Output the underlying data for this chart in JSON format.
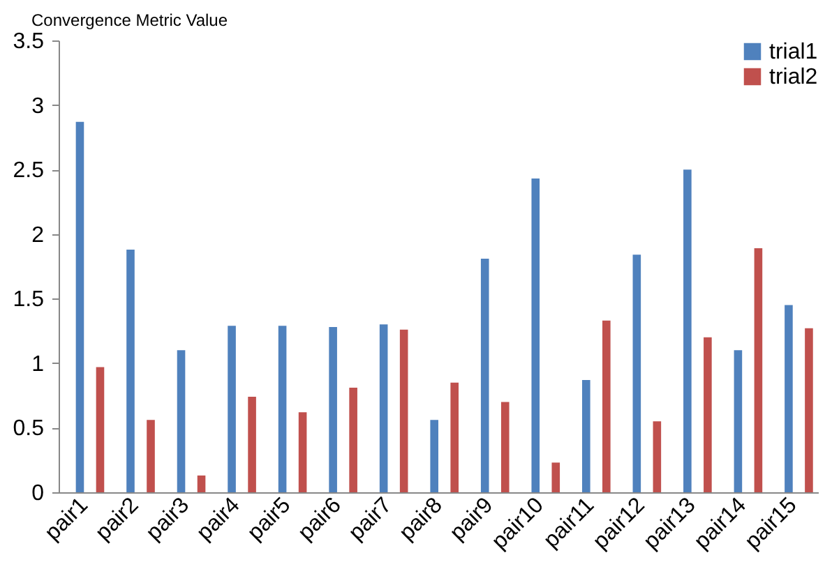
{
  "chart_data": {
    "type": "bar",
    "ylabel": "Convergence Metric Value",
    "categories": [
      "pair1",
      "pair2",
      "pair3",
      "pair4",
      "pair5",
      "pair6",
      "pair7",
      "pair8",
      "pair9",
      "pair10",
      "pair11",
      "pair12",
      "pair13",
      "pair14",
      "pair15"
    ],
    "series": [
      {
        "name": "trial1",
        "color": "#4f81bd",
        "values": [
          2.87,
          1.88,
          1.1,
          1.29,
          1.29,
          1.28,
          1.3,
          0.56,
          1.81,
          2.43,
          0.87,
          1.84,
          2.5,
          1.1,
          1.45
        ]
      },
      {
        "name": "trial2",
        "color": "#c0504d",
        "values": [
          0.97,
          0.56,
          0.13,
          0.74,
          0.62,
          0.81,
          1.26,
          0.85,
          0.7,
          0.23,
          1.33,
          0.55,
          1.2,
          1.89,
          1.27
        ]
      }
    ],
    "ylim": [
      0,
      3.5
    ],
    "yticks": [
      0,
      0.5,
      1,
      1.5,
      2,
      2.5,
      3,
      3.5
    ],
    "grid": false,
    "legend": "top right"
  }
}
